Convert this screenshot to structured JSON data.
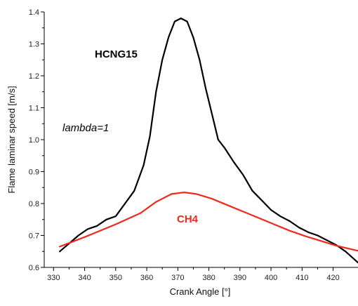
{
  "chart_data": {
    "type": "line",
    "title": "",
    "xlabel": "Crank Angle [°]",
    "ylabel": "Flame laminar speed [m/s]",
    "xlim": [
      327,
      428
    ],
    "ylim": [
      0.6,
      1.4
    ],
    "xticks": [
      330,
      340,
      350,
      360,
      370,
      380,
      390,
      400,
      410,
      420
    ],
    "yticks": [
      0.6,
      0.7,
      0.8,
      0.9,
      1.0,
      1.1,
      1.2,
      1.3,
      1.4
    ],
    "xtick_labels": [
      "330",
      "340",
      "350",
      "360",
      "370",
      "380",
      "390",
      "400",
      "410",
      "420"
    ],
    "ytick_labels": [
      "0.6",
      "0.7",
      "0.8",
      "0.9",
      "1.0",
      "1.1",
      "1.2",
      "1.3",
      "1.4"
    ],
    "grid": false,
    "series": [
      {
        "name": "HCNG15",
        "color": "#000000",
        "x": [
          332,
          335,
          338,
          341,
          344,
          347,
          350,
          353,
          356,
          359,
          361,
          363,
          365,
          367,
          369,
          371,
          373,
          375,
          377,
          379,
          381,
          383,
          385,
          388,
          391,
          394,
          397,
          400,
          403,
          406,
          409,
          412,
          415,
          418,
          421,
          424,
          428
        ],
        "y": [
          0.65,
          0.675,
          0.7,
          0.72,
          0.73,
          0.75,
          0.76,
          0.8,
          0.84,
          0.92,
          1.01,
          1.15,
          1.25,
          1.32,
          1.37,
          1.38,
          1.37,
          1.32,
          1.25,
          1.16,
          1.08,
          1.0,
          0.975,
          0.93,
          0.89,
          0.84,
          0.81,
          0.78,
          0.76,
          0.745,
          0.725,
          0.71,
          0.7,
          0.685,
          0.67,
          0.65,
          0.615
        ]
      },
      {
        "name": "CH4",
        "color": "#ee2a1a",
        "x": [
          332,
          340,
          350,
          358,
          363,
          368,
          372,
          376,
          381,
          386,
          391,
          396,
          401,
          406,
          411,
          416,
          421,
          428
        ],
        "y": [
          0.665,
          0.695,
          0.735,
          0.77,
          0.805,
          0.83,
          0.835,
          0.83,
          0.815,
          0.795,
          0.775,
          0.755,
          0.735,
          0.715,
          0.698,
          0.683,
          0.668,
          0.652
        ]
      }
    ],
    "annotations": [
      {
        "text": "HCNG15",
        "style": "bold",
        "color": "#000000"
      },
      {
        "text": "lambda=1",
        "style": "italic",
        "color": "#000000"
      },
      {
        "text": "CH4",
        "style": "bold",
        "color": "#ee2a1a"
      }
    ]
  }
}
